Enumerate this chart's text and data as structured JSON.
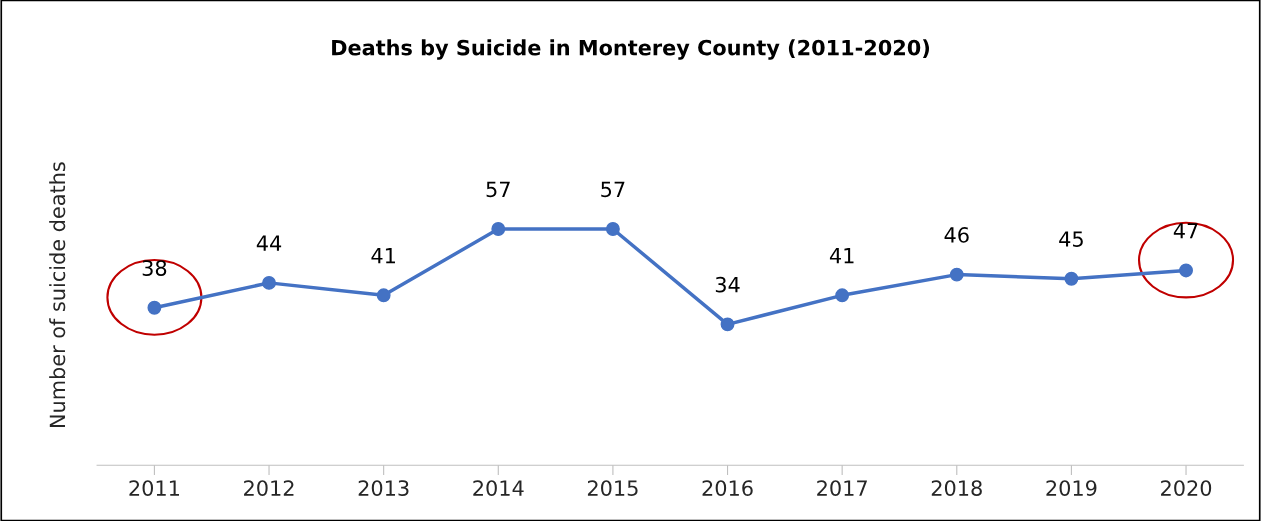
{
  "chart_data": {
    "type": "line",
    "title": "Deaths by Suicide in Monterey County (2011-2020)",
    "ylabel": "Number of suicide deaths",
    "categories": [
      "2011",
      "2012",
      "2013",
      "2014",
      "2015",
      "2016",
      "2017",
      "2018",
      "2019",
      "2020"
    ],
    "series": [
      {
        "color": "#4472c4",
        "values": [
          38,
          44,
          41,
          57,
          57,
          34,
          41,
          46,
          45,
          47
        ]
      }
    ],
    "data_labels": true,
    "marker": "circle",
    "line_style": "solid",
    "grid": false,
    "legend": false,
    "tick_labels": "x"
  }
}
